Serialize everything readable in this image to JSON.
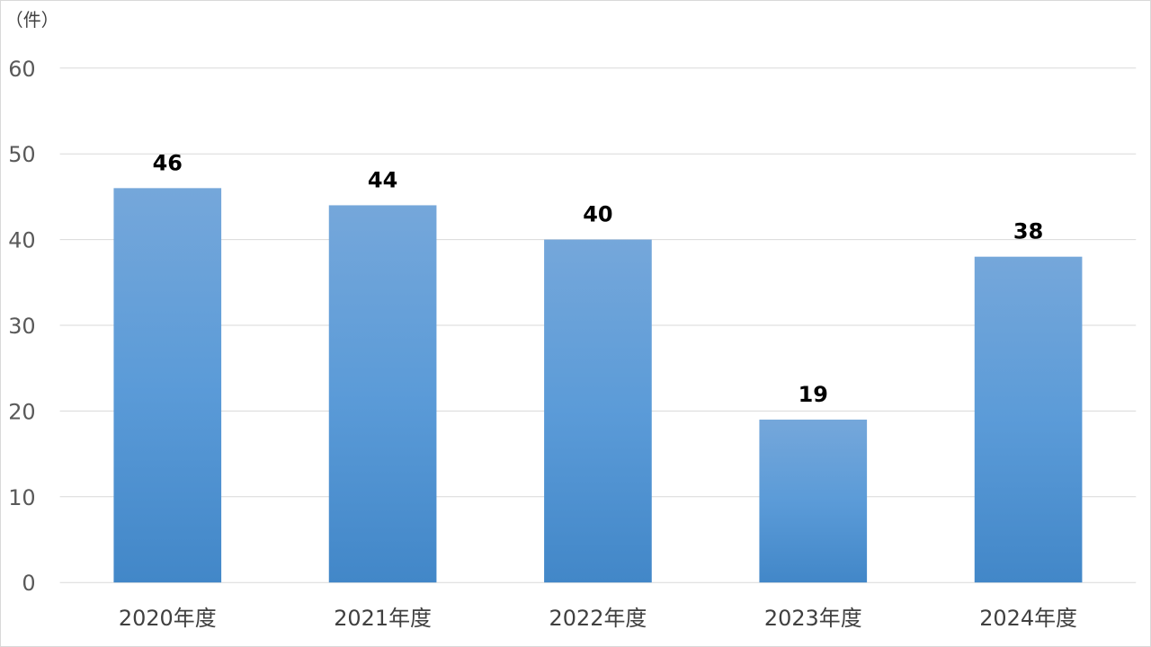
{
  "chart_data": {
    "type": "bar",
    "title": "",
    "xlabel": "",
    "ylabel": "（件）",
    "categories": [
      "2020年度",
      "2021年度",
      "2022年度",
      "2023年度",
      "2024年度"
    ],
    "series": [
      {
        "values": [
          46,
          44,
          40,
          19,
          38
        ]
      }
    ],
    "ylim": [
      0,
      60
    ],
    "yticks": [
      0,
      10,
      20,
      30,
      40,
      50,
      60
    ],
    "grid": true,
    "legend": "none",
    "data_labels": true,
    "colors": {
      "bar_top": "#75a7da",
      "bar_mid": "#5b9bd8",
      "bar_bottom": "#4287c8",
      "grid": "#d9d9d9"
    }
  }
}
